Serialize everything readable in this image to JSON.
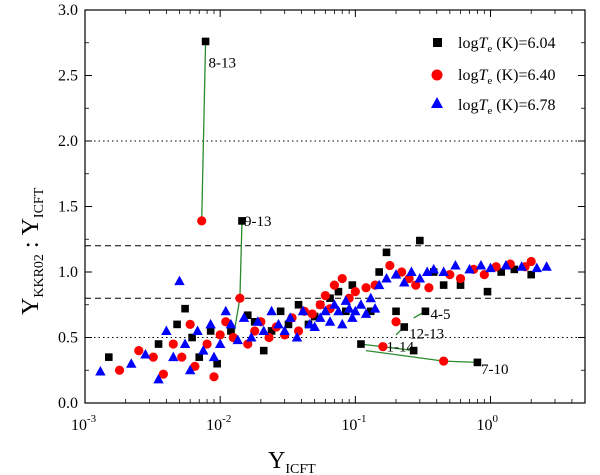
{
  "chart_data": {
    "type": "scatter",
    "xscale": "log",
    "xlim": [
      0.001,
      5
    ],
    "ylim": [
      0.0,
      3.0
    ],
    "xlabel": {
      "main": "Υ",
      "sub": "ICFT"
    },
    "ylabel": {
      "main": "Υ",
      "sub1": "KKR02",
      "sep": " : Υ",
      "sub2": "ICFT"
    },
    "x_ticks": [
      {
        "value": 0.001,
        "base": "10",
        "exp": "-3"
      },
      {
        "value": 0.01,
        "base": "10",
        "exp": "-2"
      },
      {
        "value": 0.1,
        "base": "10",
        "exp": "-1"
      },
      {
        "value": 1,
        "base": "10",
        "exp": "0"
      }
    ],
    "y_ticks": [
      {
        "value": 0.0,
        "label": "0.0"
      },
      {
        "value": 0.5,
        "label": "0.5"
      },
      {
        "value": 1.0,
        "label": "1.0"
      },
      {
        "value": 1.5,
        "label": "1.5"
      },
      {
        "value": 2.0,
        "label": "2.0"
      },
      {
        "value": 2.5,
        "label": "2.5"
      },
      {
        "value": 3.0,
        "label": "3.0"
      }
    ],
    "reference_lines": [
      {
        "y": 2.0,
        "style": "dotted"
      },
      {
        "y": 1.2,
        "style": "dashed"
      },
      {
        "y": 0.8,
        "style": "dashed"
      },
      {
        "y": 0.5,
        "style": "dotted"
      }
    ],
    "legend": {
      "position": "top-right",
      "entries": [
        {
          "pre": "log",
          "T": "T",
          "sub": "e",
          "post": " (K)=6.04",
          "marker": "square",
          "color": "#000000"
        },
        {
          "pre": "log",
          "T": "T",
          "sub": "e",
          "post": " (K)=6.40",
          "marker": "circle",
          "color": "#ff0000"
        },
        {
          "pre": "log",
          "T": "T",
          "sub": "e",
          "post": " (K)=6.78",
          "marker": "triangle",
          "color": "#0000ff"
        }
      ]
    },
    "series": [
      {
        "name": "logTe (K)=6.04",
        "marker": "square",
        "color": "#000000",
        "points": [
          [
            0.0015,
            0.35
          ],
          [
            0.0035,
            0.45
          ],
          [
            0.0048,
            0.6
          ],
          [
            0.0055,
            0.72
          ],
          [
            0.0062,
            0.5
          ],
          [
            0.007,
            0.35
          ],
          [
            0.0078,
            2.76
          ],
          [
            0.0085,
            0.55
          ],
          [
            0.0095,
            0.3
          ],
          [
            0.012,
            0.55
          ],
          [
            0.0145,
            1.39
          ],
          [
            0.016,
            0.67
          ],
          [
            0.018,
            0.62
          ],
          [
            0.021,
            0.4
          ],
          [
            0.024,
            0.55
          ],
          [
            0.028,
            0.7
          ],
          [
            0.032,
            0.6
          ],
          [
            0.038,
            0.75
          ],
          [
            0.045,
            0.6
          ],
          [
            0.05,
            0.66
          ],
          [
            0.055,
            0.75
          ],
          [
            0.065,
            0.8
          ],
          [
            0.075,
            0.85
          ],
          [
            0.085,
            0.7
          ],
          [
            0.095,
            0.9
          ],
          [
            0.11,
            0.45
          ],
          [
            0.13,
            0.7
          ],
          [
            0.15,
            1.0
          ],
          [
            0.17,
            1.15
          ],
          [
            0.2,
            0.7
          ],
          [
            0.23,
            0.58
          ],
          [
            0.27,
            0.4
          ],
          [
            0.3,
            1.24
          ],
          [
            0.33,
            0.7
          ],
          [
            0.38,
            1.0
          ],
          [
            0.45,
            0.9
          ],
          [
            0.6,
            0.9
          ],
          [
            0.8,
            0.31
          ],
          [
            0.95,
            0.85
          ],
          [
            1.2,
            1.0
          ],
          [
            1.5,
            1.02
          ],
          [
            2.0,
            0.98
          ]
        ]
      },
      {
        "name": "logTe (K)=6.40",
        "marker": "circle",
        "color": "#ff0000",
        "points": [
          [
            0.0018,
            0.25
          ],
          [
            0.0025,
            0.4
          ],
          [
            0.0032,
            0.35
          ],
          [
            0.0038,
            0.22
          ],
          [
            0.0045,
            0.45
          ],
          [
            0.0052,
            0.35
          ],
          [
            0.006,
            0.6
          ],
          [
            0.0065,
            0.28
          ],
          [
            0.0073,
            1.39
          ],
          [
            0.008,
            0.45
          ],
          [
            0.009,
            0.2
          ],
          [
            0.01,
            0.52
          ],
          [
            0.011,
            0.62
          ],
          [
            0.0125,
            0.5
          ],
          [
            0.014,
            0.8
          ],
          [
            0.016,
            0.45
          ],
          [
            0.018,
            0.55
          ],
          [
            0.02,
            0.62
          ],
          [
            0.023,
            0.5
          ],
          [
            0.026,
            0.58
          ],
          [
            0.03,
            0.52
          ],
          [
            0.034,
            0.65
          ],
          [
            0.038,
            0.55
          ],
          [
            0.042,
            0.7
          ],
          [
            0.048,
            0.68
          ],
          [
            0.055,
            0.75
          ],
          [
            0.06,
            0.82
          ],
          [
            0.065,
            0.72
          ],
          [
            0.07,
            0.9
          ],
          [
            0.08,
            0.95
          ],
          [
            0.09,
            0.8
          ],
          [
            0.1,
            0.85
          ],
          [
            0.12,
            0.88
          ],
          [
            0.14,
            0.9
          ],
          [
            0.16,
            0.43
          ],
          [
            0.18,
            1.05
          ],
          [
            0.2,
            0.62
          ],
          [
            0.22,
            1.0
          ],
          [
            0.25,
            0.95
          ],
          [
            0.28,
            0.9
          ],
          [
            0.35,
            0.88
          ],
          [
            0.45,
            0.32
          ],
          [
            0.5,
            0.98
          ],
          [
            0.6,
            0.95
          ],
          [
            0.75,
            1.02
          ],
          [
            0.9,
            0.98
          ],
          [
            1.1,
            1.04
          ],
          [
            1.4,
            1.06
          ],
          [
            1.8,
            1.04
          ],
          [
            2.0,
            1.08
          ]
        ]
      },
      {
        "name": "logTe (K)=6.78",
        "marker": "triangle",
        "color": "#0000ff",
        "points": [
          [
            0.0013,
            0.24
          ],
          [
            0.0022,
            0.3
          ],
          [
            0.0028,
            0.37
          ],
          [
            0.0035,
            0.18
          ],
          [
            0.004,
            0.55
          ],
          [
            0.0045,
            0.35
          ],
          [
            0.005,
            0.93
          ],
          [
            0.0055,
            0.45
          ],
          [
            0.006,
            0.25
          ],
          [
            0.0068,
            0.55
          ],
          [
            0.0075,
            0.4
          ],
          [
            0.0085,
            0.6
          ],
          [
            0.009,
            0.35
          ],
          [
            0.01,
            0.45
          ],
          [
            0.011,
            0.7
          ],
          [
            0.012,
            0.6
          ],
          [
            0.0135,
            0.48
          ],
          [
            0.015,
            0.65
          ],
          [
            0.017,
            0.5
          ],
          [
            0.019,
            0.62
          ],
          [
            0.021,
            0.55
          ],
          [
            0.024,
            0.7
          ],
          [
            0.027,
            0.6
          ],
          [
            0.03,
            0.55
          ],
          [
            0.033,
            0.65
          ],
          [
            0.037,
            0.5
          ],
          [
            0.041,
            0.7
          ],
          [
            0.046,
            0.6
          ],
          [
            0.05,
            0.58
          ],
          [
            0.055,
            0.65
          ],
          [
            0.06,
            0.7
          ],
          [
            0.065,
            0.62
          ],
          [
            0.07,
            0.75
          ],
          [
            0.075,
            0.7
          ],
          [
            0.08,
            0.6
          ],
          [
            0.085,
            0.78
          ],
          [
            0.09,
            0.72
          ],
          [
            0.095,
            0.65
          ],
          [
            0.1,
            0.7
          ],
          [
            0.11,
            0.75
          ],
          [
            0.12,
            0.68
          ],
          [
            0.13,
            0.8
          ],
          [
            0.14,
            0.72
          ],
          [
            0.15,
            0.9
          ],
          [
            0.17,
            0.95
          ],
          [
            0.2,
            0.98
          ],
          [
            0.23,
            0.92
          ],
          [
            0.26,
            1.0
          ],
          [
            0.3,
            0.95
          ],
          [
            0.34,
            1.0
          ],
          [
            0.38,
            1.02
          ],
          [
            0.45,
            1.0
          ],
          [
            0.55,
            1.05
          ],
          [
            0.7,
            1.02
          ],
          [
            0.85,
            1.05
          ],
          [
            1.0,
            1.03
          ],
          [
            1.3,
            1.05
          ],
          [
            1.7,
            1.04
          ],
          [
            2.2,
            1.03
          ],
          [
            2.6,
            1.04
          ]
        ]
      }
    ],
    "annotations": [
      {
        "label": "8-13",
        "line": [
          [
            0.0073,
            1.39
          ],
          [
            0.0078,
            2.76
          ]
        ],
        "anchor": [
          0.0082,
          2.6
        ]
      },
      {
        "label": "9-13",
        "line": [
          [
            0.0125,
            0.5
          ],
          [
            0.014,
            0.8
          ],
          [
            0.0145,
            1.39
          ]
        ],
        "anchor": [
          0.015,
          1.39
        ]
      },
      {
        "label": "4-5",
        "line": [
          [
            0.27,
            0.65
          ],
          [
            0.33,
            0.7
          ]
        ],
        "anchor": [
          0.36,
          0.68
        ]
      },
      {
        "label": "12-13",
        "line": [
          [
            0.2,
            0.52
          ],
          [
            0.23,
            0.58
          ]
        ],
        "anchor": [
          0.25,
          0.53
        ]
      },
      {
        "label": "1-14",
        "line": [
          [
            0.11,
            0.45
          ],
          [
            0.16,
            0.43
          ],
          [
            0.27,
            0.4
          ]
        ],
        "anchor": [
          0.17,
          0.43
        ]
      },
      {
        "label": "7-10",
        "line": [
          [
            0.12,
            0.4
          ],
          [
            0.45,
            0.32
          ],
          [
            0.8,
            0.31
          ]
        ],
        "anchor": [
          0.85,
          0.26
        ]
      }
    ]
  }
}
